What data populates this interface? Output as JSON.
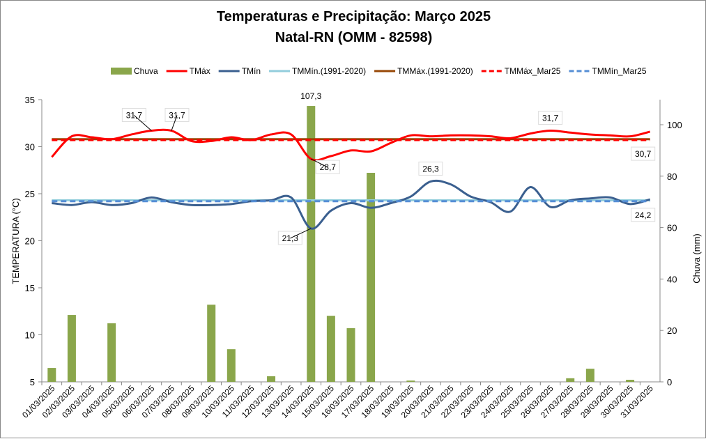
{
  "chart_data": {
    "type": "bar+line",
    "title": "Temperaturas e Precipitação: Março 2025",
    "subtitle": "Natal-RN (OMM - 82598)",
    "ylabel": "TEMPERATURA (°C)",
    "y2label": "Chuva (mm)",
    "ylim": [
      5,
      35
    ],
    "yticks": [
      5,
      10,
      15,
      20,
      25,
      30,
      35
    ],
    "y2lim": [
      0,
      110
    ],
    "y2ticks": [
      0,
      20,
      40,
      60,
      80,
      100
    ],
    "legend_position": "top",
    "categories": [
      "01/03/2025",
      "02/03/2025",
      "03/03/2025",
      "04/03/2025",
      "05/03/2025",
      "06/03/2025",
      "07/03/2025",
      "08/03/2025",
      "09/03/2025",
      "10/03/2025",
      "11/03/2025",
      "12/03/2025",
      "13/03/2025",
      "14/03/2025",
      "15/03/2025",
      "16/03/2025",
      "17/03/2025",
      "18/03/2025",
      "19/03/2025",
      "20/03/2025",
      "21/03/2025",
      "22/03/2025",
      "23/03/2025",
      "24/03/2025",
      "25/03/2025",
      "26/03/2025",
      "27/03/2025",
      "28/03/2025",
      "29/03/2025",
      "30/03/2025",
      "31/03/2025"
    ],
    "series": [
      {
        "name": "Chuva",
        "type": "bar",
        "axis": "right",
        "color": "#8aa64b",
        "values": [
          5.4,
          26,
          0,
          22.8,
          0,
          0,
          0,
          0,
          30,
          12.7,
          0,
          2.2,
          0,
          107.3,
          25.7,
          20.9,
          81.3,
          0,
          0.5,
          0,
          0,
          0,
          0,
          0,
          0,
          0,
          1.4,
          5.1,
          0,
          0.8,
          0
        ]
      },
      {
        "name": "TMáx",
        "type": "line",
        "color": "#ff0000",
        "values": [
          28.9,
          31.1,
          31.0,
          30.8,
          31.3,
          31.7,
          31.7,
          30.6,
          30.6,
          31.0,
          30.7,
          31.3,
          31.3,
          28.7,
          29.0,
          29.6,
          29.5,
          30.4,
          31.2,
          31.1,
          31.2,
          31.2,
          31.1,
          30.9,
          31.4,
          31.7,
          31.5,
          31.3,
          31.2,
          31.1,
          31.6
        ]
      },
      {
        "name": "TMín",
        "type": "line",
        "color": "#3a5f8f",
        "values": [
          24.0,
          23.8,
          24.1,
          23.8,
          24.0,
          24.6,
          24.1,
          23.8,
          23.8,
          23.9,
          24.2,
          24.3,
          24.6,
          21.3,
          23.2,
          24.0,
          23.5,
          24.0,
          24.7,
          26.3,
          26.0,
          24.7,
          24.1,
          23.1,
          25.7,
          23.6,
          24.3,
          24.5,
          24.6,
          23.9,
          24.4
        ]
      },
      {
        "name": "TMMín.(1991-2020)",
        "type": "constant",
        "color": "#92cddc",
        "value": 24.3
      },
      {
        "name": "TMMáx.(1991-2020)",
        "type": "constant",
        "color": "#984807",
        "value": 30.8
      },
      {
        "name": "TMMáx_Mar25",
        "type": "constant-dashed",
        "color": "#ff0000",
        "value": 30.7
      },
      {
        "name": "TMMín_Mar25",
        "type": "constant-dashed",
        "color": "#558ed5",
        "value": 24.2
      }
    ],
    "annotations": [
      {
        "text": "107,3",
        "day": 14,
        "series": "Chuva"
      },
      {
        "text": "31,7",
        "day": 6,
        "series": "TMáx"
      },
      {
        "text": "31,7",
        "day": 7,
        "series": "TMáx"
      },
      {
        "text": "31,7",
        "day": 26,
        "series": "TMáx"
      },
      {
        "text": "28,7",
        "day": 14,
        "series": "TMáx"
      },
      {
        "text": "21,3",
        "day": 14,
        "series": "TMín"
      },
      {
        "text": "26,3",
        "day": 20,
        "series": "TMín"
      },
      {
        "text": "30,7",
        "day": 31,
        "series": "TMMáx_Mar25"
      },
      {
        "text": "24,2",
        "day": 31,
        "series": "TMMín_Mar25"
      }
    ]
  }
}
